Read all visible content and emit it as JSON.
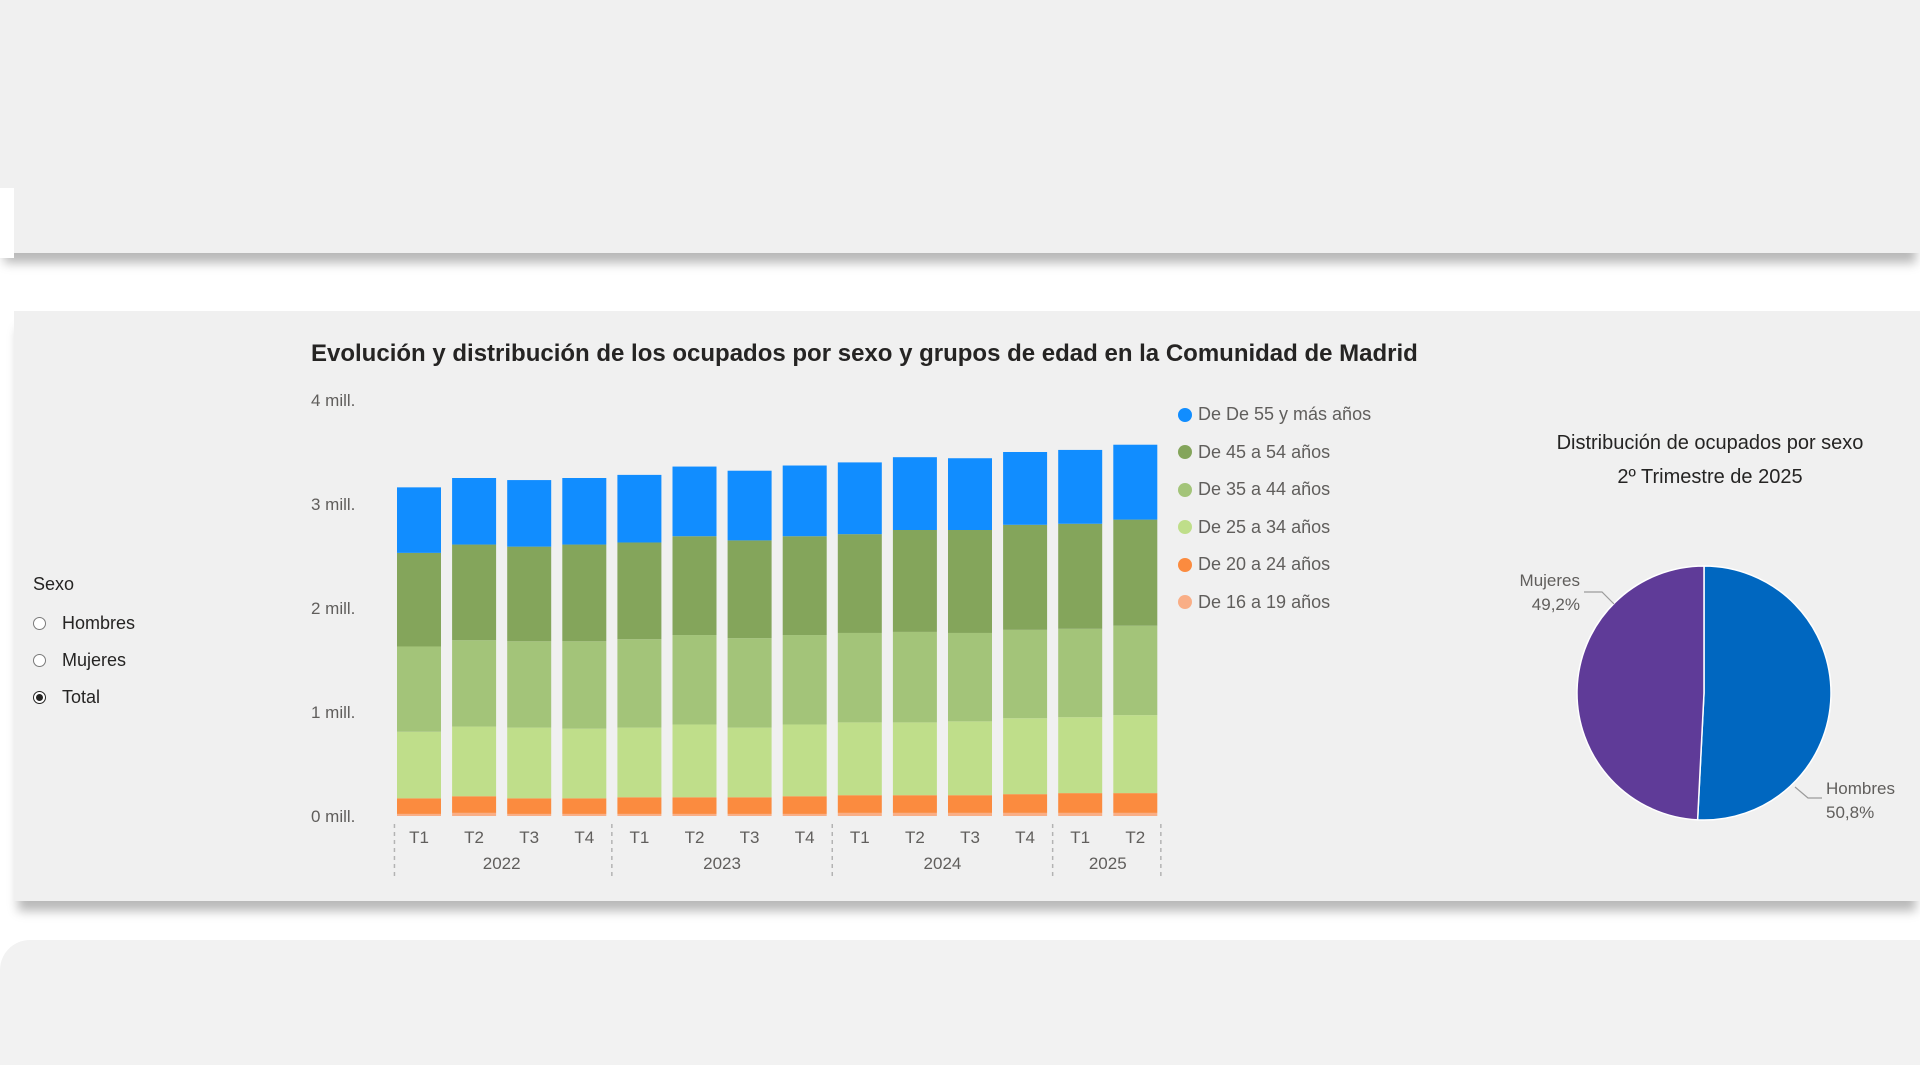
{
  "chart_title": "Evolución y distribución de los ocupados por sexo y grupos de edad en la Comunidad de Madrid",
  "slicer": {
    "title": "Sexo",
    "options": [
      {
        "label": "Hombres",
        "selected": false
      },
      {
        "label": "Mujeres",
        "selected": false
      },
      {
        "label": "Total",
        "selected": true
      }
    ]
  },
  "legend": [
    {
      "label": "De De 55 y más años",
      "color": "#118dff"
    },
    {
      "label": "De 45 a 54 años",
      "color": "#84a55b"
    },
    {
      "label": "De 35 a 44 años",
      "color": "#a3c479"
    },
    {
      "label": "De 25 a 34 años",
      "color": "#bfde8a"
    },
    {
      "label": "De 20 a 24 años",
      "color": "#fb8b3f"
    },
    {
      "label": "De 16 a 19 años",
      "color": "#f9ae86"
    }
  ],
  "chart_data": [
    {
      "type": "bar",
      "stacked": true,
      "ylim": [
        0,
        4
      ],
      "y_ticks": [
        "0 mill.",
        "1 mill.",
        "2 mill.",
        "3 mill.",
        "4 mill."
      ],
      "categories": [
        "T1",
        "T2",
        "T3",
        "T4",
        "T1",
        "T2",
        "T3",
        "T4",
        "T1",
        "T2",
        "T3",
        "T4",
        "T1",
        "T2"
      ],
      "year_groups": [
        {
          "label": "2022",
          "count": 4
        },
        {
          "label": "2023",
          "count": 4
        },
        {
          "label": "2024",
          "count": 4
        },
        {
          "label": "2025",
          "count": 2
        }
      ],
      "series": [
        {
          "name": "De 16 a 19 años",
          "color": "#f9ae86",
          "values": [
            0.02,
            0.03,
            0.02,
            0.02,
            0.02,
            0.02,
            0.02,
            0.02,
            0.03,
            0.03,
            0.03,
            0.03,
            0.03,
            0.03
          ]
        },
        {
          "name": "De 20 a 24 años",
          "color": "#fb8b3f",
          "values": [
            0.15,
            0.16,
            0.15,
            0.15,
            0.16,
            0.16,
            0.16,
            0.17,
            0.17,
            0.17,
            0.17,
            0.18,
            0.19,
            0.19
          ]
        },
        {
          "name": "De 25 a 34 años",
          "color": "#bfde8a",
          "values": [
            0.64,
            0.67,
            0.68,
            0.67,
            0.67,
            0.7,
            0.67,
            0.69,
            0.7,
            0.7,
            0.71,
            0.73,
            0.73,
            0.75
          ]
        },
        {
          "name": "De 35 a 44 años",
          "color": "#a3c479",
          "values": [
            0.82,
            0.83,
            0.83,
            0.84,
            0.85,
            0.86,
            0.86,
            0.86,
            0.86,
            0.87,
            0.85,
            0.85,
            0.85,
            0.86
          ]
        },
        {
          "name": "De 45 a 54 años",
          "color": "#84a55b",
          "values": [
            0.9,
            0.92,
            0.91,
            0.93,
            0.93,
            0.95,
            0.94,
            0.95,
            0.95,
            0.98,
            0.99,
            1.01,
            1.01,
            1.02
          ]
        },
        {
          "name": "De De 55 y más años",
          "color": "#118dff",
          "values": [
            0.63,
            0.64,
            0.64,
            0.64,
            0.65,
            0.67,
            0.67,
            0.68,
            0.69,
            0.7,
            0.69,
            0.7,
            0.71,
            0.72
          ]
        }
      ]
    },
    {
      "type": "pie",
      "title_line1": "Distribución de ocupados por sexo",
      "title_line2": "2º Trimestre de 2025",
      "slices": [
        {
          "label": "Hombres",
          "value": 50.8,
          "value_label": "50,8%",
          "color": "#0067c0"
        },
        {
          "label": "Mujeres",
          "value": 49.2,
          "value_label": "49,2%",
          "color": "#5f3b98"
        }
      ]
    }
  ]
}
